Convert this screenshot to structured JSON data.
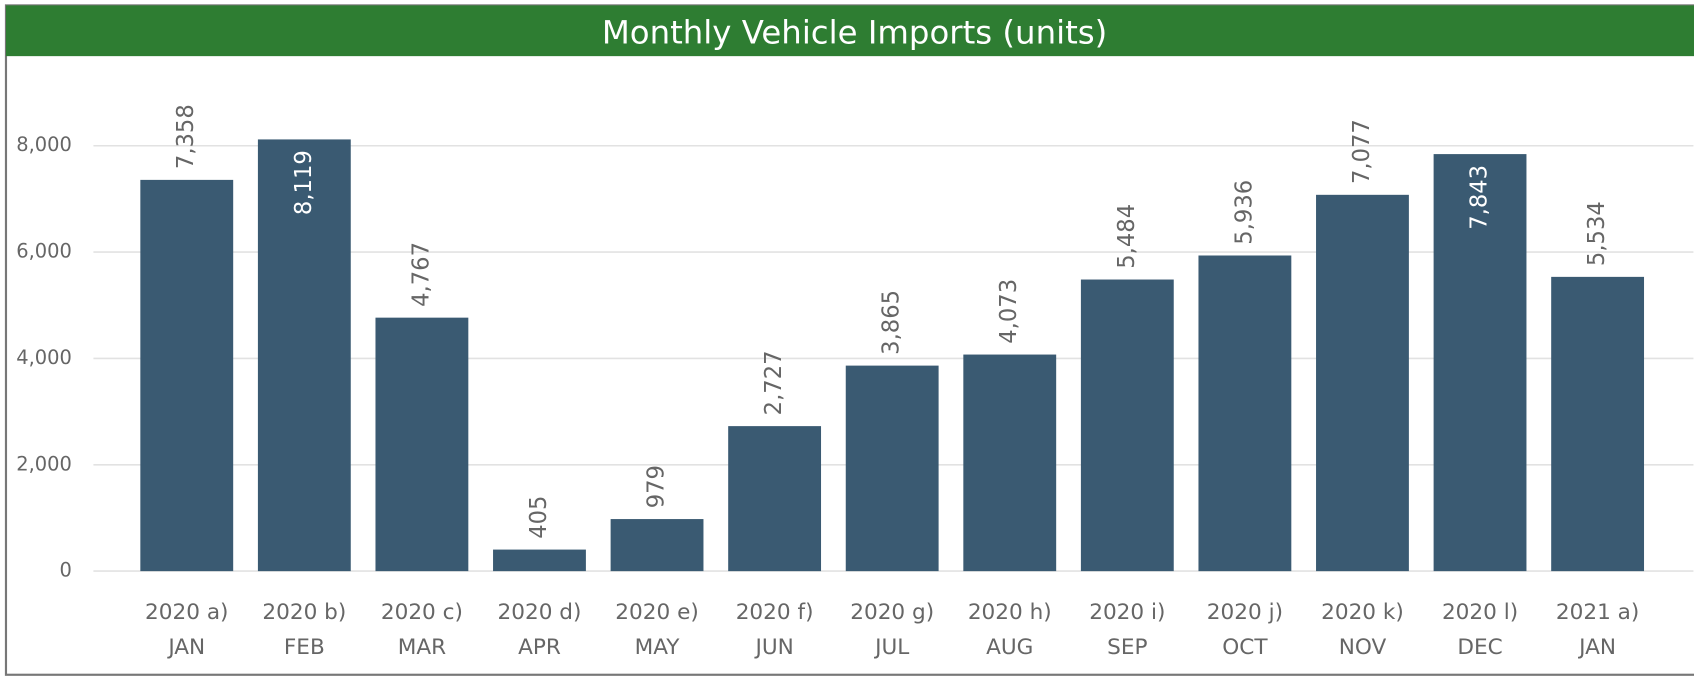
{
  "chart_data": {
    "type": "bar",
    "title": "Monthly Vehicle Imports (units)",
    "categories": [
      [
        "2020 a)",
        "JAN"
      ],
      [
        "2020 b)",
        "FEB"
      ],
      [
        "2020 c)",
        "MAR"
      ],
      [
        "2020 d)",
        "APR"
      ],
      [
        "2020 e)",
        "MAY"
      ],
      [
        "2020 f)",
        "JUN"
      ],
      [
        "2020 g)",
        "JUL"
      ],
      [
        "2020 h)",
        "AUG"
      ],
      [
        "2020 i)",
        "SEP"
      ],
      [
        "2020 j)",
        "OCT"
      ],
      [
        "2020 k)",
        "NOV"
      ],
      [
        "2020 l)",
        "DEC"
      ],
      [
        "2021 a)",
        "JAN"
      ]
    ],
    "values": [
      7358,
      8119,
      4767,
      405,
      979,
      2727,
      3865,
      4073,
      5484,
      5936,
      7077,
      7843,
      5534
    ],
    "value_labels": [
      "7,358",
      "8,119",
      "4,767",
      "405",
      "979",
      "2,727",
      "3,865",
      "4,073",
      "5,484",
      "5,936",
      "7,077",
      "7,843",
      "5,534"
    ],
    "color": "#3a5a72",
    "ylim": [
      0,
      9000
    ],
    "yticks": [
      0,
      {
        "value": 2000,
        "label": "2,000"
      },
      {
        "value": 4000,
        "label": "4,000"
      },
      {
        "value": 6000,
        "label": "6,000"
      },
      {
        "value": 8000,
        "label": "8,000"
      }
    ],
    "grid": true
  }
}
